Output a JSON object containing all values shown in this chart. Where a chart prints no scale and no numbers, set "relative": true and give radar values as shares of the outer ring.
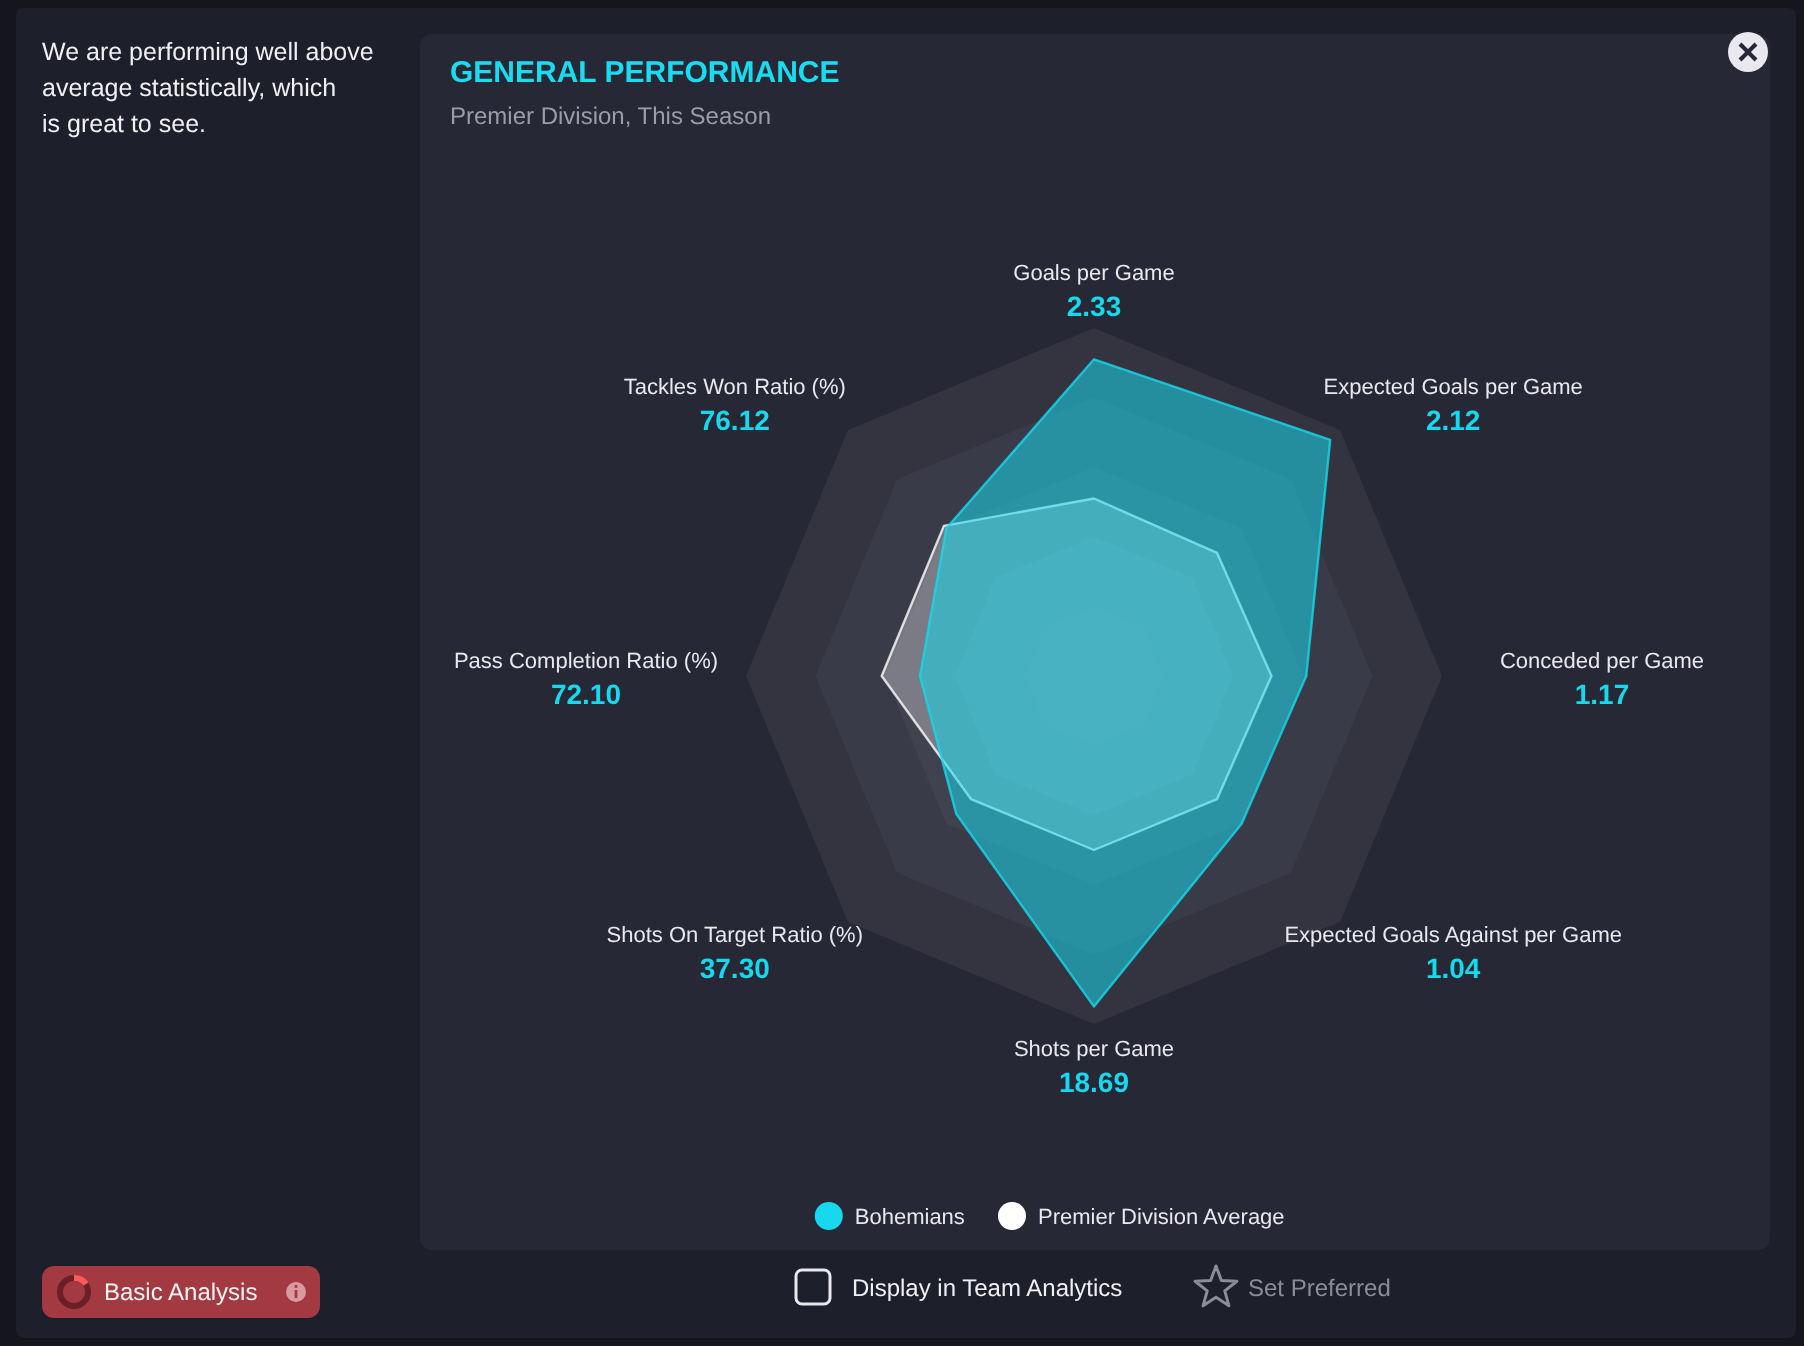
{
  "chart_data": {
    "type": "radar",
    "title": "GENERAL PERFORMANCE",
    "subtitle": "Premier Division, This Season",
    "categories": [
      "Goals per Game",
      "Expected Goals per Game",
      "Conceded per Game",
      "Expected Goals Against per Game",
      "Shots per Game",
      "Shots On Target Ratio (%)",
      "Pass Completion Ratio (%)",
      "Tackles Won Ratio (%)"
    ],
    "relative": true,
    "series": [
      {
        "name": "Bohemians",
        "color": "#17d8ec",
        "values": [
          0.91,
          0.96,
          0.61,
          0.6,
          0.95,
          0.56,
          0.5,
          0.6
        ]
      },
      {
        "name": "Premier Division Average",
        "color": "#ffffff",
        "values": [
          0.51,
          0.5,
          0.51,
          0.5,
          0.5,
          0.5,
          0.61,
          0.61
        ]
      }
    ],
    "grid": true,
    "legend": "bottom",
    "annotations": [
      "We are performing well above average statistically, which is great to see.",
      "Basic Analysis",
      "Display in Team Analytics",
      "Set Preferred",
      {
        "text": "2.33",
        "x": "Goals per Game"
      },
      {
        "text": "2.12",
        "x": "Expected Goals per Game"
      },
      {
        "text": "1.17",
        "x": "Conceded per Game"
      },
      {
        "text": "1.04",
        "x": "Expected Goals Against per Game"
      },
      {
        "text": "18.69",
        "x": "Shots per Game"
      },
      {
        "text": "37.30",
        "x": "Shots On Target Ratio (%)"
      },
      {
        "text": "72.10",
        "x": "Pass Completion Ratio (%)"
      },
      {
        "text": "76.12",
        "x": "Tackles Won Ratio (%)"
      }
    ]
  }
}
